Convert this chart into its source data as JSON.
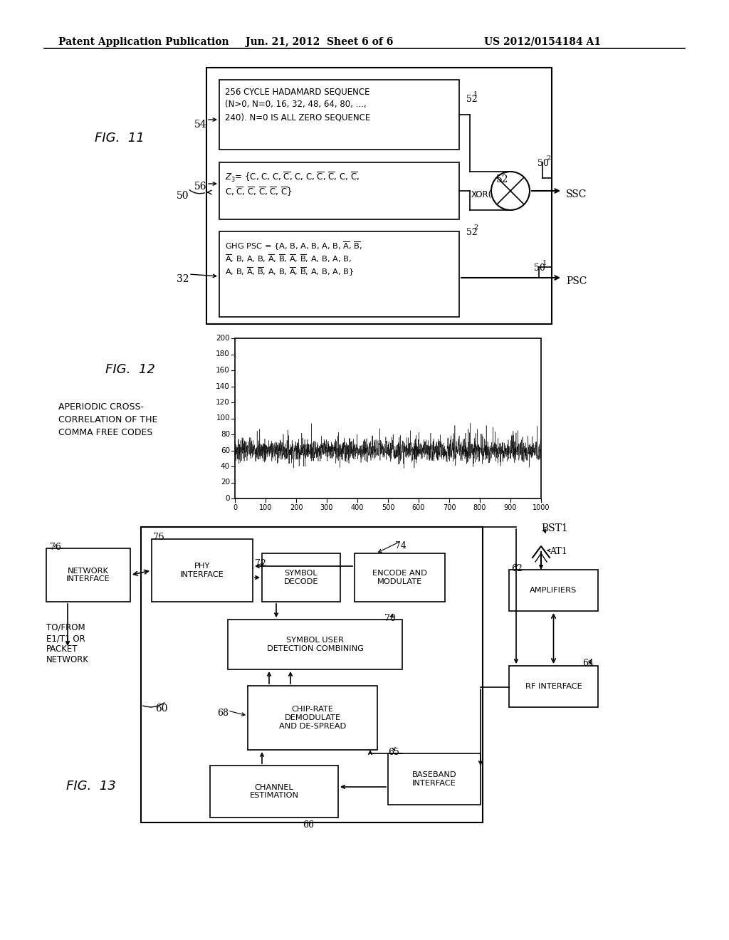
{
  "header_left": "Patent Application Publication",
  "header_mid": "Jun. 21, 2012  Sheet 6 of 6",
  "header_right": "US 2012/0154184 A1",
  "bg_color": "#ffffff"
}
